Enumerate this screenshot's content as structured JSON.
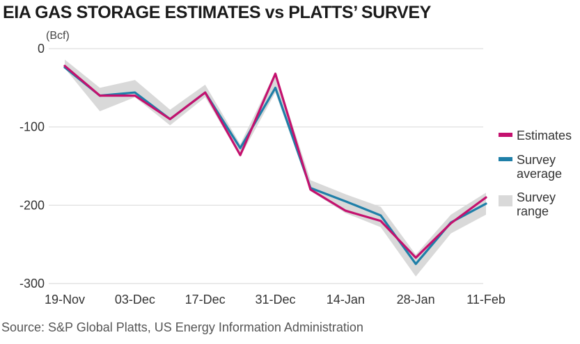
{
  "title": "EIA GAS STORAGE ESTIMATES vs PLATTS’ SURVEY",
  "source": "Source: S&P Global Platts, US Energy Information Administration",
  "colors": {
    "estimates": "#c4116e",
    "survey_average": "#1f7fa8",
    "survey_range": "#d9d9d9",
    "grid": "#dddddd"
  },
  "chart_data": {
    "type": "line",
    "ylabel": "(Bcf)",
    "ylim": [
      -300,
      0
    ],
    "yticks": [
      0,
      -100,
      -200,
      -300
    ],
    "ytick_labels": [
      "0",
      "-100",
      "-200",
      "-300"
    ],
    "x": [
      "19-Nov",
      "26-Nov",
      "03-Dec",
      "10-Dec",
      "17-Dec",
      "24-Dec",
      "31-Dec",
      "07-Jan",
      "14-Jan",
      "21-Jan",
      "28-Jan",
      "04-Feb",
      "11-Feb"
    ],
    "xtick_labels": [
      "19-Nov",
      "03-Dec",
      "17-Dec",
      "31-Dec",
      "14-Jan",
      "28-Jan",
      "11-Feb"
    ],
    "xtick_every": 2,
    "grid": true,
    "legend": "right",
    "series": [
      {
        "name": "Estimates",
        "values": [
          -22,
          -60,
          -60,
          -90,
          -56,
          -136,
          -32,
          -180,
          -207,
          -220,
          -267,
          -223,
          -190
        ]
      },
      {
        "name": "Survey average",
        "values": [
          -24,
          -60,
          -56,
          -90,
          -56,
          -127,
          -50,
          -178,
          -195,
          -213,
          -275,
          -222,
          -198
        ]
      }
    ],
    "range": {
      "name": "Survey range",
      "low": [
        -25,
        -80,
        -62,
        -98,
        -62,
        -138,
        -56,
        -182,
        -210,
        -228,
        -291,
        -236,
        -212
      ],
      "high": [
        -14,
        -50,
        -40,
        -78,
        -46,
        -122,
        -30,
        -168,
        -186,
        -202,
        -263,
        -212,
        -184
      ]
    }
  },
  "legend_items": [
    {
      "line1": "Estimates",
      "line2": ""
    },
    {
      "line1": "Survey",
      "line2": "average"
    },
    {
      "line1": "Survey",
      "line2": "range"
    }
  ]
}
